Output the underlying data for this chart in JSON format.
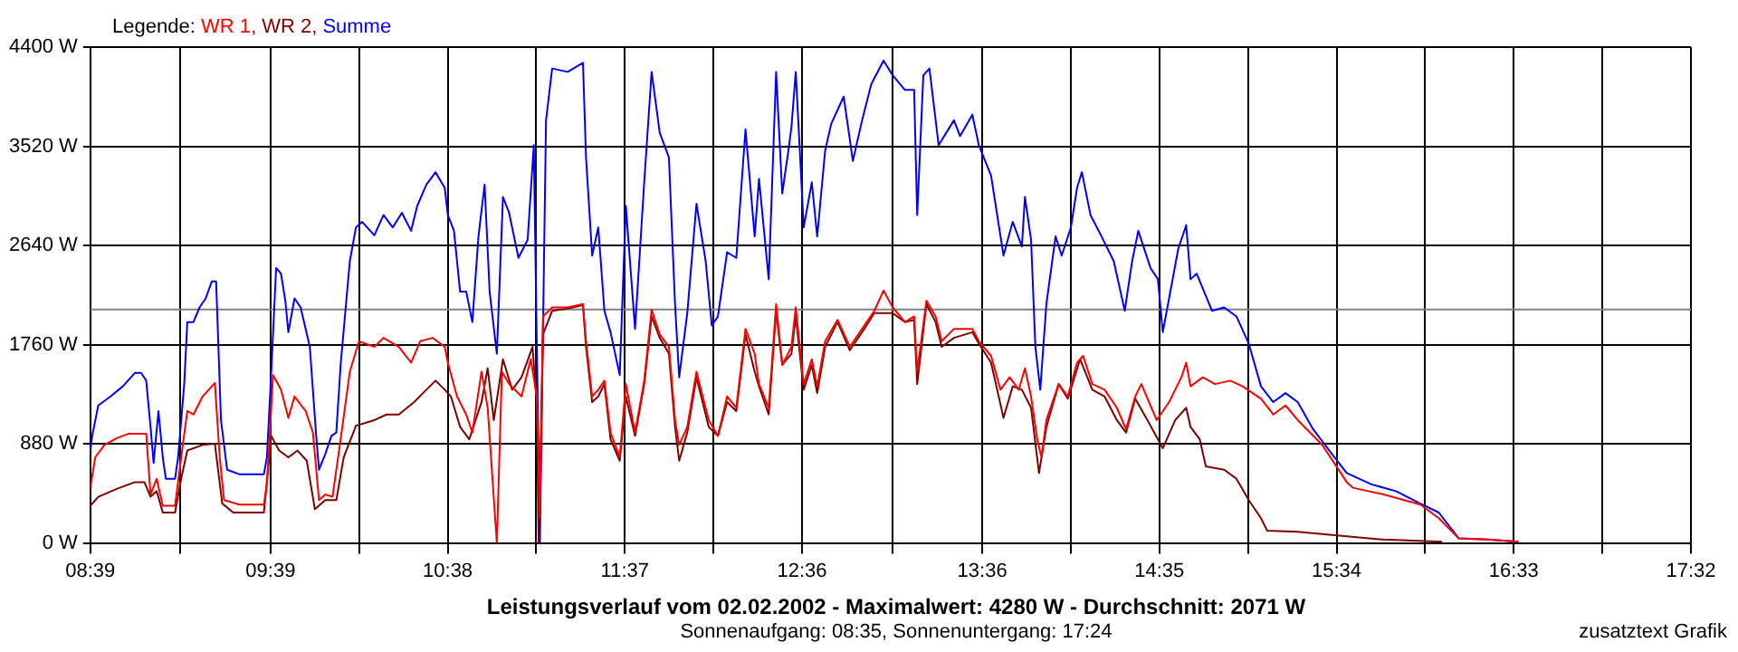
{
  "chart_data": {
    "type": "line",
    "title": "Leistungsverlauf vom 02.02.2002 - Maximalwert: 4280 W - Durchschnitt: 2071 W",
    "subtitle": "Sonnenaufgang: 08:35, Sonnenuntergang: 17:24",
    "legend_title": "Legende:",
    "annotations": [
      "zusatztext Grafik"
    ],
    "legend": "top left",
    "grid": true,
    "marker": "none",
    "line_style": "solid",
    "xlim": [
      8.65,
      17.5333
    ],
    "xticks": [
      {
        "value": 8.65,
        "label": "08:39"
      },
      {
        "value": 9.15,
        "label": null
      },
      {
        "value": 9.65,
        "label": "09:39"
      },
      {
        "value": 10.1417,
        "label": null
      },
      {
        "value": 10.6333,
        "label": "10:38"
      },
      {
        "value": 11.125,
        "label": null
      },
      {
        "value": 11.6167,
        "label": "11:37"
      },
      {
        "value": 12.1083,
        "label": null
      },
      {
        "value": 12.6,
        "label": "12:36"
      },
      {
        "value": 13.1,
        "label": null
      },
      {
        "value": 13.6,
        "label": "13:36"
      },
      {
        "value": 14.0917,
        "label": null
      },
      {
        "value": 14.5833,
        "label": "14:35"
      },
      {
        "value": 15.075,
        "label": null
      },
      {
        "value": 15.5667,
        "label": "15:34"
      },
      {
        "value": 16.0583,
        "label": null
      },
      {
        "value": 16.55,
        "label": "16:33"
      },
      {
        "value": 17.0417,
        "label": null
      },
      {
        "value": 17.5333,
        "label": "17:32"
      }
    ],
    "ylim": [
      0,
      4400
    ],
    "yticks": [
      {
        "value": 0,
        "label": "0 W"
      },
      {
        "value": 880,
        "label": "880 W"
      },
      {
        "value": 1760,
        "label": "1760 W"
      },
      {
        "value": 2640,
        "label": "2640 W"
      },
      {
        "value": 3520,
        "label": "3520 W"
      },
      {
        "value": 4400,
        "label": "4400 W"
      }
    ],
    "ref_lines": [
      {
        "axis": "y",
        "value": 2071,
        "color": "#808080"
      }
    ],
    "series": [
      {
        "name": "WR 1,",
        "color": "#ff0000",
        "x": [
          8.65,
          8.677,
          8.728,
          8.796,
          8.864,
          8.96,
          8.984,
          9.018,
          9.052,
          9.12,
          9.154,
          9.188,
          9.222,
          9.273,
          9.341,
          9.368,
          9.392,
          9.477,
          9.613,
          9.63,
          9.664,
          9.708,
          9.749,
          9.783,
          9.845,
          9.885,
          9.919,
          9.954,
          9.994,
          10.039,
          10.09,
          10.141,
          10.226,
          10.277,
          10.362,
          10.43,
          10.481,
          10.549,
          10.617,
          10.634,
          10.685,
          10.736,
          10.77,
          10.821,
          10.855,
          10.906,
          10.934,
          10.974,
          11.043,
          11.094,
          11.128,
          11.145,
          11.162,
          11.213,
          11.299,
          11.384,
          11.401,
          11.435,
          11.469,
          11.503,
          11.537,
          11.588,
          11.622,
          11.673,
          11.724,
          11.765,
          11.81,
          11.861,
          11.895,
          11.918,
          11.963,
          12.014,
          12.082,
          12.133,
          12.184,
          12.235,
          12.286,
          12.337,
          12.361,
          12.415,
          12.456,
          12.49,
          12.541,
          12.565,
          12.609,
          12.654,
          12.684,
          12.728,
          12.797,
          12.865,
          12.933,
          13.001,
          13.052,
          13.103,
          13.171,
          13.222,
          13.239,
          13.29,
          13.341,
          13.375,
          13.443,
          13.545,
          13.581,
          13.649,
          13.701,
          13.752,
          13.803,
          13.837,
          13.871,
          13.905,
          13.929,
          13.956,
          14.024,
          14.075,
          14.126,
          14.16,
          14.211,
          14.279,
          14.347,
          14.398,
          14.449,
          14.483,
          14.568,
          14.637,
          14.705,
          14.732,
          14.756,
          14.824,
          14.892,
          14.977,
          15.045,
          15.147,
          15.215,
          15.283,
          15.351,
          15.487,
          15.623,
          15.657,
          15.828,
          16.032,
          16.134,
          16.245,
          16.406,
          16.576
        ],
        "values": [
          490,
          760,
          870,
          930,
          970,
          970,
          430,
          570,
          330,
          330,
          760,
          1170,
          1140,
          1300,
          1420,
          760,
          380,
          340,
          340,
          520,
          1490,
          1360,
          1110,
          1300,
          1170,
          980,
          380,
          430,
          410,
          920,
          1520,
          1790,
          1740,
          1820,
          1740,
          1600,
          1790,
          1820,
          1740,
          1600,
          1300,
          1140,
          980,
          1520,
          1200,
          0,
          1520,
          1410,
          1300,
          1630,
          1300,
          220,
          2010,
          2090,
          2090,
          2120,
          1790,
          1300,
          1360,
          1440,
          980,
          760,
          1410,
          980,
          1440,
          2070,
          1850,
          1740,
          1090,
          870,
          1030,
          1520,
          1090,
          950,
          1300,
          1200,
          1900,
          1680,
          1410,
          1200,
          2120,
          1580,
          1740,
          2090,
          1410,
          1630,
          1390,
          1790,
          1980,
          1740,
          1900,
          2060,
          2240,
          2090,
          1960,
          2010,
          1520,
          2150,
          2010,
          1790,
          1900,
          1900,
          1790,
          1660,
          1360,
          1470,
          1360,
          1550,
          1300,
          920,
          760,
          1090,
          1410,
          1300,
          1600,
          1660,
          1410,
          1360,
          1200,
          1010,
          1300,
          1410,
          1090,
          1250,
          1470,
          1600,
          1390,
          1470,
          1410,
          1440,
          1390,
          1280,
          1140,
          1220,
          1090,
          870,
          540,
          490,
          430,
          340,
          220,
          40,
          30,
          10
        ]
      },
      {
        "name": "WR 2,",
        "color": "#800000",
        "x": [
          8.65,
          8.694,
          8.796,
          8.898,
          8.95,
          8.984,
          9.018,
          9.052,
          9.12,
          9.154,
          9.188,
          9.273,
          9.341,
          9.382,
          9.443,
          9.613,
          9.654,
          9.698,
          9.749,
          9.8,
          9.851,
          9.896,
          9.954,
          10.015,
          10.056,
          10.124,
          10.226,
          10.294,
          10.362,
          10.447,
          10.515,
          10.566,
          10.617,
          10.651,
          10.702,
          10.753,
          10.821,
          10.855,
          10.889,
          10.94,
          10.991,
          11.043,
          11.104,
          11.128,
          11.138,
          11.162,
          11.213,
          11.299,
          11.384,
          11.401,
          11.435,
          11.469,
          11.503,
          11.537,
          11.588,
          11.622,
          11.673,
          11.724,
          11.765,
          11.81,
          11.861,
          11.895,
          11.918,
          11.963,
          12.014,
          12.082,
          12.133,
          12.184,
          12.235,
          12.286,
          12.337,
          12.361,
          12.415,
          12.456,
          12.49,
          12.541,
          12.565,
          12.609,
          12.654,
          12.684,
          12.728,
          12.797,
          12.865,
          12.933,
          13.001,
          13.103,
          13.171,
          13.222,
          13.239,
          13.29,
          13.341,
          13.375,
          13.443,
          13.545,
          13.581,
          13.649,
          13.718,
          13.769,
          13.82,
          13.871,
          13.915,
          13.956,
          14.024,
          14.075,
          14.143,
          14.211,
          14.279,
          14.347,
          14.398,
          14.449,
          14.517,
          14.602,
          14.671,
          14.732,
          14.756,
          14.807,
          14.841,
          14.943,
          15.011,
          15.079,
          15.147,
          15.181,
          15.351,
          15.555,
          15.828,
          16.151
        ],
        "values": [
          330,
          410,
          480,
          540,
          540,
          410,
          460,
          270,
          270,
          570,
          820,
          870,
          880,
          350,
          270,
          270,
          950,
          820,
          760,
          820,
          730,
          300,
          380,
          380,
          760,
          1040,
          1090,
          1140,
          1140,
          1250,
          1360,
          1440,
          1360,
          1300,
          1030,
          920,
          1250,
          1550,
          1090,
          1630,
          1360,
          1470,
          1740,
          1220,
          0,
          1850,
          2060,
          2080,
          2110,
          1740,
          1250,
          1300,
          1410,
          920,
          730,
          1300,
          950,
          1410,
          2010,
          1820,
          1680,
          1030,
          730,
          980,
          1470,
          1030,
          950,
          1250,
          1170,
          1850,
          1520,
          1390,
          1140,
          2060,
          1580,
          1680,
          2010,
          1360,
          1580,
          1330,
          1740,
          1960,
          1710,
          1870,
          2040,
          2040,
          1960,
          1980,
          1410,
          2120,
          1960,
          1740,
          1820,
          1870,
          1770,
          1600,
          1110,
          1390,
          1360,
          1200,
          620,
          1030,
          1410,
          1280,
          1630,
          1360,
          1300,
          1090,
          980,
          1280,
          1090,
          840,
          1090,
          1200,
          1030,
          920,
          680,
          650,
          570,
          380,
          220,
          110,
          100,
          70,
          30,
          10
        ]
      },
      {
        "name": "Summe",
        "color": "#0000ff",
        "x": [
          8.65,
          8.66,
          8.694,
          8.762,
          8.83,
          8.898,
          8.932,
          8.96,
          8.984,
          9.001,
          9.028,
          9.052,
          9.069,
          9.12,
          9.137,
          9.171,
          9.188,
          9.222,
          9.256,
          9.29,
          9.324,
          9.348,
          9.375,
          9.409,
          9.477,
          9.613,
          9.63,
          9.654,
          9.681,
          9.708,
          9.732,
          9.749,
          9.783,
          9.817,
          9.868,
          9.902,
          9.919,
          9.954,
          9.988,
          10.015,
          10.039,
          10.09,
          10.124,
          10.158,
          10.226,
          10.277,
          10.328,
          10.379,
          10.43,
          10.464,
          10.515,
          10.566,
          10.617,
          10.634,
          10.668,
          10.702,
          10.736,
          10.77,
          10.804,
          10.838,
          10.866,
          10.906,
          10.94,
          10.974,
          11.026,
          11.077,
          11.111,
          11.128,
          11.145,
          11.179,
          11.213,
          11.299,
          11.384,
          11.401,
          11.435,
          11.469,
          11.503,
          11.537,
          11.588,
          11.622,
          11.673,
          11.724,
          11.765,
          11.81,
          11.861,
          11.895,
          11.918,
          11.963,
          12.014,
          12.065,
          12.099,
          12.133,
          12.184,
          12.235,
          12.286,
          12.337,
          12.361,
          12.415,
          12.456,
          12.49,
          12.524,
          12.541,
          12.565,
          12.592,
          12.609,
          12.654,
          12.684,
          12.728,
          12.762,
          12.831,
          12.882,
          12.933,
          12.984,
          13.052,
          13.103,
          13.171,
          13.222,
          13.239,
          13.273,
          13.307,
          13.358,
          13.443,
          13.477,
          13.545,
          13.581,
          13.649,
          13.718,
          13.769,
          13.82,
          13.837,
          13.871,
          13.895,
          13.922,
          13.956,
          14.007,
          14.041,
          14.092,
          14.126,
          14.153,
          14.201,
          14.262,
          14.33,
          14.391,
          14.432,
          14.466,
          14.534,
          14.575,
          14.602,
          14.637,
          14.688,
          14.732,
          14.756,
          14.79,
          14.875,
          14.943,
          15.011,
          15.079,
          15.147,
          15.215,
          15.283,
          15.351,
          15.436,
          15.555,
          15.623,
          15.76,
          15.896,
          16.032,
          16.134,
          16.245,
          16.406,
          16.576
        ],
        "values": [
          820,
          950,
          1220,
          1300,
          1390,
          1510,
          1510,
          1440,
          1030,
          710,
          1170,
          760,
          570,
          570,
          760,
          1410,
          1960,
          1960,
          2090,
          2170,
          2320,
          2320,
          1090,
          650,
          610,
          610,
          760,
          1520,
          2440,
          2390,
          2150,
          1870,
          2170,
          2090,
          1740,
          980,
          650,
          790,
          950,
          980,
          1580,
          2500,
          2800,
          2850,
          2730,
          2910,
          2800,
          2930,
          2770,
          2990,
          3180,
          3290,
          3150,
          2910,
          2770,
          2230,
          2230,
          1960,
          2720,
          3180,
          2230,
          1680,
          3070,
          2930,
          2530,
          2690,
          3530,
          1740,
          0,
          3750,
          4210,
          4180,
          4260,
          3420,
          2550,
          2800,
          2060,
          1870,
          1490,
          2990,
          1900,
          3200,
          4180,
          3640,
          3420,
          2120,
          1470,
          2040,
          3010,
          2500,
          1930,
          2010,
          2580,
          2530,
          3670,
          2720,
          3230,
          2340,
          4180,
          3100,
          3480,
          3690,
          4180,
          3340,
          2800,
          3200,
          2720,
          3480,
          3720,
          3960,
          3390,
          3750,
          4070,
          4280,
          4150,
          4020,
          4020,
          2910,
          4150,
          4210,
          3530,
          3750,
          3610,
          3800,
          3530,
          3260,
          2550,
          2850,
          2630,
          3070,
          2690,
          1740,
          1360,
          2120,
          2720,
          2550,
          2800,
          3150,
          3290,
          2910,
          2720,
          2500,
          2060,
          2500,
          2770,
          2440,
          2340,
          1870,
          2170,
          2610,
          2820,
          2340,
          2390,
          2060,
          2090,
          2010,
          1770,
          1390,
          1250,
          1330,
          1250,
          1010,
          760,
          620,
          520,
          460,
          350,
          270,
          40,
          30,
          10
        ]
      }
    ]
  }
}
